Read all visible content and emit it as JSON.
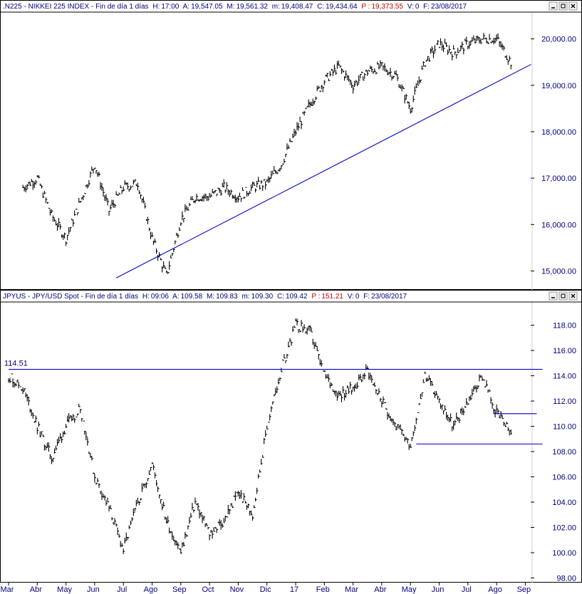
{
  "colors": {
    "axis_text": "#000080",
    "trend_line": "#0000cc",
    "bars": "#000000",
    "price_highlight": "#cc0000",
    "border": "#000000"
  },
  "months": [
    "Mar",
    "Abr",
    "May",
    "Jun",
    "Jul",
    "Ago",
    "Sep",
    "Oct",
    "Nov",
    "Dic",
    "17",
    "Feb",
    "Mar",
    "Abr",
    "May",
    "Jun",
    "Jul",
    "Ago",
    "Sep"
  ],
  "chart_data": [
    {
      "type": "line",
      "header": {
        "symbol": ".N225",
        "name": "NIKKEI 225 INDEX",
        "period": "Fin de día 1 días",
        "h_label": "H:",
        "h_value": "17:00",
        "a_label": "A:",
        "a_value": "19,547.05",
        "m_label": "M:",
        "m_value": "19,561.32",
        "lo_label": "m:",
        "lo_value": "19,408.47",
        "c_label": "C:",
        "c_value": "19,434.64",
        "p_label": "P :",
        "p_value": "19,373.55",
        "v_label": "V:",
        "v_value": "0",
        "f_label": "F:",
        "f_value": "23/08/2017"
      },
      "ylim": [
        14700,
        20500
      ],
      "yticks": [
        15000,
        16000,
        17000,
        18000,
        19000,
        20000
      ],
      "ytick_labels": [
        "15,000.00",
        "16,000.00",
        "17,000.00",
        "18,000.00",
        "19,000.00",
        "20,000.00"
      ],
      "x": [
        0.5,
        1,
        1.5,
        2,
        2.5,
        3,
        3.5,
        4,
        4.5,
        5,
        5.5,
        6,
        6.5,
        7,
        7.5,
        8,
        8.5,
        9,
        9.5,
        10,
        10.5,
        11,
        11.5,
        12,
        12.5,
        13,
        13.5,
        14,
        14.5,
        15,
        15.5,
        16,
        16.5,
        17,
        17.5
      ],
      "values": [
        16800,
        17000,
        16200,
        15700,
        16500,
        17300,
        16300,
        16800,
        16900,
        15700,
        14900,
        16100,
        16600,
        16600,
        16800,
        16600,
        16800,
        16900,
        17300,
        18000,
        18600,
        19100,
        19400,
        19000,
        19300,
        19400,
        19200,
        18500,
        19500,
        19900,
        19700,
        19900,
        20000,
        20000,
        19500
      ],
      "annotations": [
        {
          "type": "trendline",
          "x1": 3.75,
          "y1": 14850,
          "x2": 18.2,
          "y2": 19450
        }
      ]
    },
    {
      "type": "line",
      "header": {
        "symbol": "JPYUS",
        "name": "JPY/USD Spot",
        "period": "Fin de día 1 días",
        "h_label": "H:",
        "h_value": "09:06",
        "a_label": "A:",
        "a_value": "109.58",
        "m_label": "M:",
        "m_value": "109.83",
        "lo_label": "m:",
        "lo_value": "109.30",
        "c_label": "C:",
        "c_value": "109.42",
        "p_label": "P :",
        "p_value": "151.21",
        "v_label": "V:",
        "v_value": "0",
        "f_label": "F:",
        "f_value": "23/08/2017"
      },
      "ylim": [
        97.8,
        119.5
      ],
      "yticks": [
        98,
        100,
        102,
        104,
        106,
        108,
        110,
        112,
        114,
        116,
        118
      ],
      "ytick_labels": [
        "98.00",
        "100.00",
        "102.00",
        "104.00",
        "106.00",
        "108.00",
        "110.00",
        "112.00",
        "114.00",
        "116.00",
        "118.00"
      ],
      "x": [
        0,
        0.5,
        1,
        1.5,
        2,
        2.5,
        3,
        3.5,
        4,
        4.5,
        5,
        5.5,
        6,
        6.5,
        7,
        7.5,
        8,
        8.5,
        9,
        9.5,
        10,
        10.5,
        11,
        11.5,
        12,
        12.5,
        13,
        13.5,
        14,
        14.5,
        15,
        15.5,
        16,
        16.5,
        17,
        17.5
      ],
      "values": [
        114,
        113,
        110,
        107.5,
        110,
        111.5,
        106,
        103.5,
        100.2,
        104,
        107,
        102.5,
        100,
        104,
        101.5,
        102.5,
        104.8,
        103,
        110,
        114.5,
        118,
        117.5,
        114,
        112.5,
        113,
        114.5,
        112,
        110,
        108.6,
        114,
        112,
        110,
        112,
        114,
        111,
        109.4
      ],
      "annotations": [
        {
          "type": "hline",
          "label": "114.51",
          "y": 114.51,
          "x1": 0,
          "x2": 18.6
        },
        {
          "type": "hline",
          "label": "",
          "y": 111.0,
          "x1": 16.9,
          "x2": 18.4
        },
        {
          "type": "hline",
          "label": "",
          "y": 108.6,
          "x1": 14.2,
          "x2": 18.6
        }
      ]
    }
  ]
}
